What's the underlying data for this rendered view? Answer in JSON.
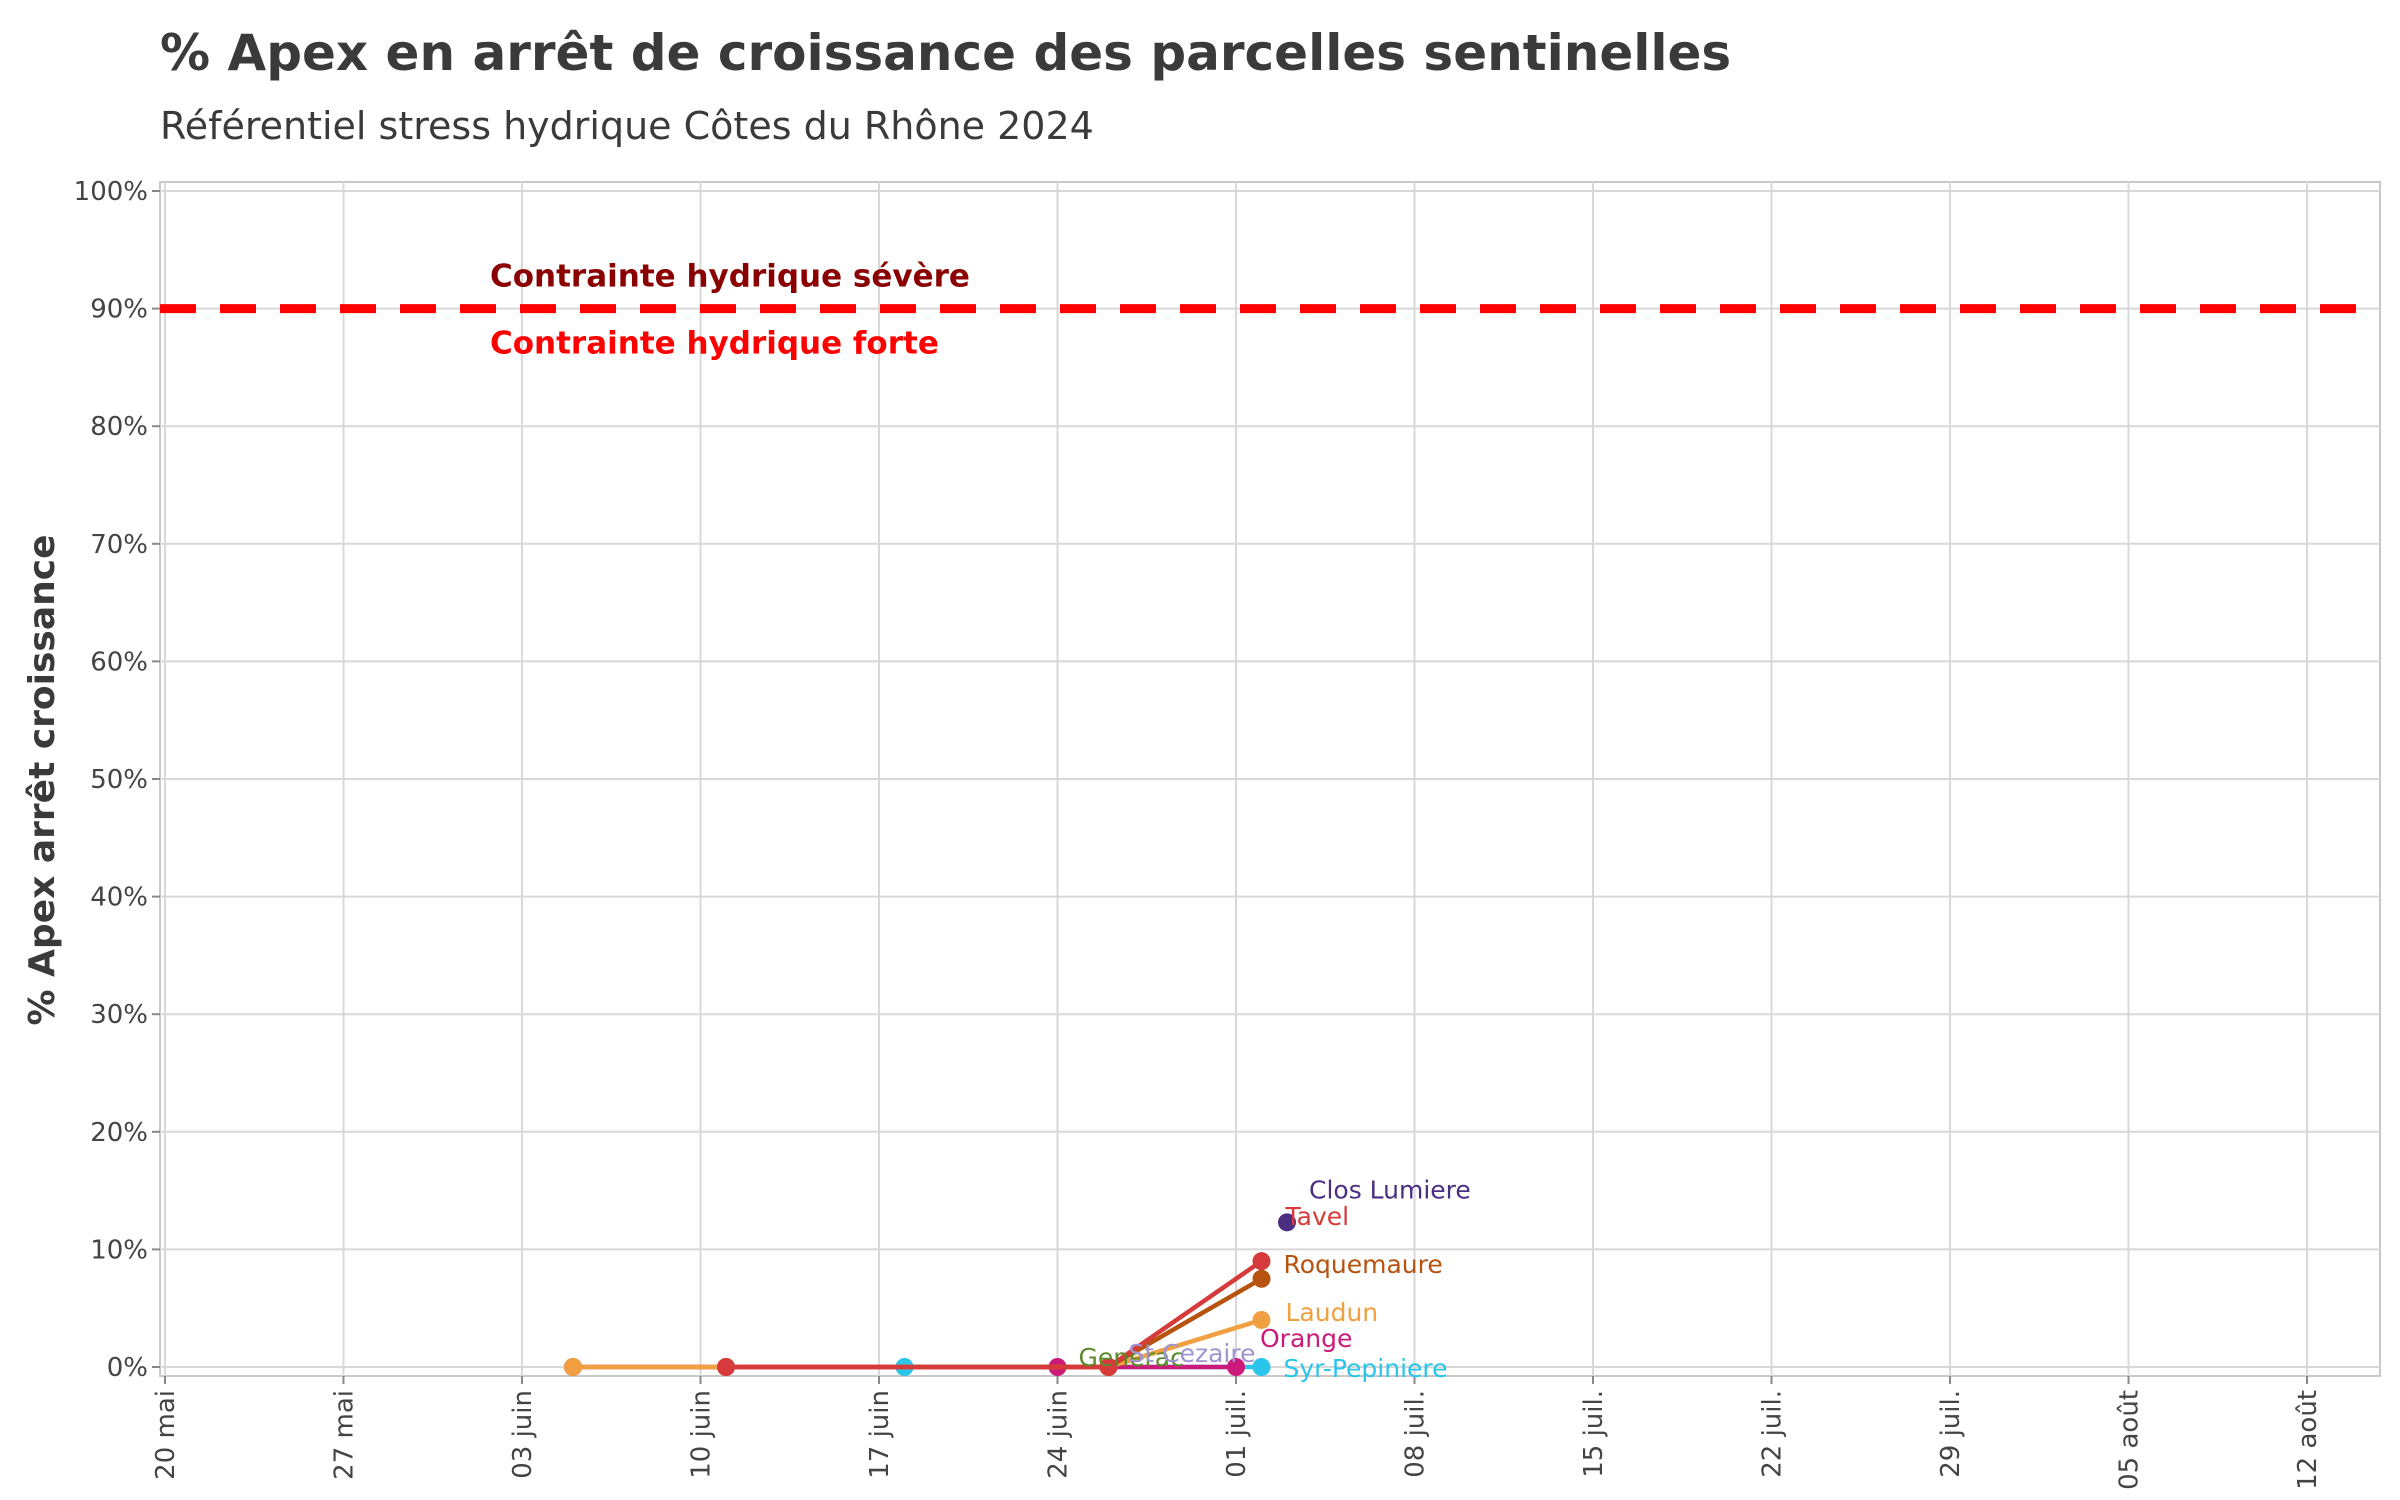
{
  "chart_data": {
    "type": "line",
    "title": "% Apex en arrêt de croissance des parcelles sentinelles",
    "subtitle": "Référentiel stress hydrique Côtes du Rhône 2024",
    "xlabel": "",
    "ylabel": "% Apex arrêt croissance",
    "x_ticks": [
      "20 mai",
      "27 mai",
      "03 juin",
      "10 juin",
      "17 juin",
      "24 juin",
      "01 juil.",
      "08 juil.",
      "15 juil.",
      "22 juil.",
      "29 juil.",
      "05 août",
      "12 août"
    ],
    "x_range": [
      "2024-05-20",
      "2024-08-15"
    ],
    "y_ticks": [
      "0%",
      "10%",
      "20%",
      "30%",
      "40%",
      "50%",
      "60%",
      "70%",
      "80%",
      "90%",
      "100%"
    ],
    "ylim": [
      0,
      100
    ],
    "grid": true,
    "threshold": {
      "value": 90,
      "color": "#ff0000",
      "label_above": "Contrainte hydrique sévère",
      "label_above_color": "#8b0000",
      "label_below": "Contrainte hydrique forte",
      "label_below_color": "#ff0000"
    },
    "series": [
      {
        "name": "Syr-Pepiniere",
        "color": "#29c5ea",
        "x": [
          "2024-06-18",
          "2024-07-02"
        ],
        "values": [
          0,
          0
        ]
      },
      {
        "name": "Orange",
        "color": "#cc1a7a",
        "x": [
          "2024-06-05",
          "2024-06-24",
          "2024-07-01"
        ],
        "values": [
          0,
          0,
          0
        ]
      },
      {
        "name": "Generac",
        "color": "#5b8a2a",
        "x": [
          "2024-06-26"
        ],
        "values": [
          0
        ]
      },
      {
        "name": "St Cezaire",
        "color": "#9e94d0",
        "x": [
          "2024-06-26"
        ],
        "values": [
          0
        ]
      },
      {
        "name": "Laudun",
        "color": "#f0a040",
        "x": [
          "2024-06-05",
          "2024-06-26",
          "2024-07-02"
        ],
        "values": [
          0,
          0,
          4
        ]
      },
      {
        "name": "Roquemaure",
        "color": "#b5530f",
        "x": [
          "2024-06-11",
          "2024-06-26",
          "2024-07-02"
        ],
        "values": [
          0,
          0,
          7.5
        ]
      },
      {
        "name": "Tavel",
        "color": "#d63a3a",
        "x": [
          "2024-06-11",
          "2024-06-26",
          "2024-07-02"
        ],
        "values": [
          0,
          0,
          9
        ]
      },
      {
        "name": "Clos Lumiere",
        "color": "#4b2d82",
        "x": [
          "2024-07-03"
        ],
        "values": [
          12.3
        ]
      }
    ]
  }
}
